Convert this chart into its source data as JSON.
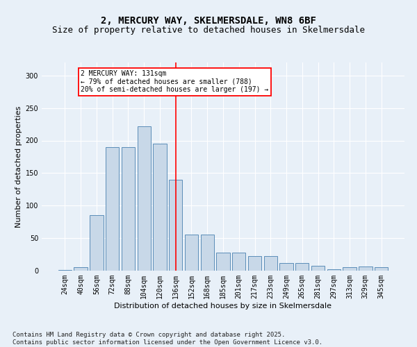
{
  "title1": "2, MERCURY WAY, SKELMERSDALE, WN8 6BF",
  "title2": "Size of property relative to detached houses in Skelmersdale",
  "xlabel": "Distribution of detached houses by size in Skelmersdale",
  "ylabel": "Number of detached properties",
  "categories": [
    "24sqm",
    "40sqm",
    "56sqm",
    "72sqm",
    "88sqm",
    "104sqm",
    "120sqm",
    "136sqm",
    "152sqm",
    "168sqm",
    "185sqm",
    "201sqm",
    "217sqm",
    "233sqm",
    "249sqm",
    "265sqm",
    "281sqm",
    "297sqm",
    "313sqm",
    "329sqm",
    "345sqm"
  ],
  "bar_heights": [
    1,
    5,
    85,
    190,
    190,
    222,
    195,
    140,
    55,
    55,
    28,
    28,
    22,
    22,
    12,
    12,
    7,
    2,
    5,
    6,
    5
  ],
  "bar_color": "#c8d8e8",
  "bar_edge_color": "#5b8db8",
  "vline_index": 7,
  "vline_color": "red",
  "annotation_text": "2 MERCURY WAY: 131sqm\n← 79% of detached houses are smaller (788)\n20% of semi-detached houses are larger (197) →",
  "annotation_box_color": "white",
  "annotation_box_edge": "red",
  "ylim": [
    0,
    320
  ],
  "yticks": [
    0,
    50,
    100,
    150,
    200,
    250,
    300
  ],
  "bg_color": "#e8f0f8",
  "footer": "Contains HM Land Registry data © Crown copyright and database right 2025.\nContains public sector information licensed under the Open Government Licence v3.0.",
  "title1_fontsize": 10,
  "title2_fontsize": 9,
  "xlabel_fontsize": 8,
  "ylabel_fontsize": 8,
  "tick_fontsize": 7,
  "footer_fontsize": 6.5,
  "annot_fontsize": 7
}
